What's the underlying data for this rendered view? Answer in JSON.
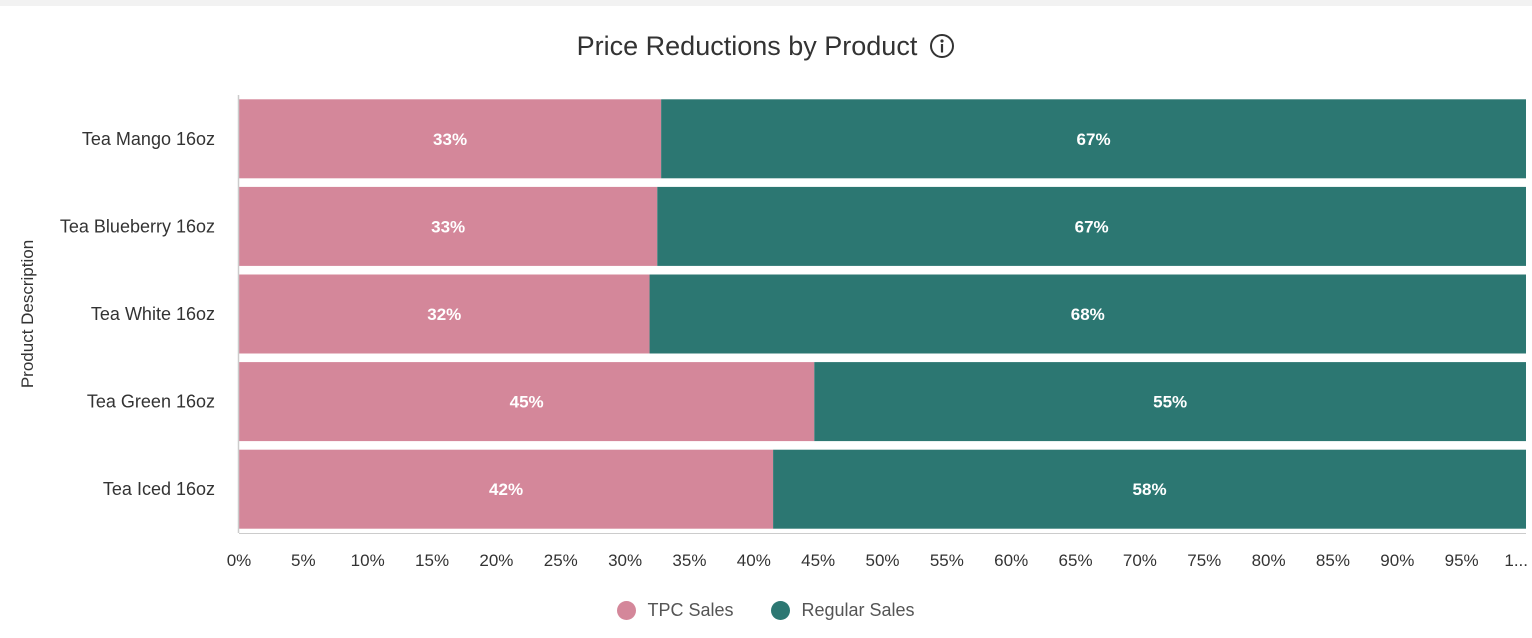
{
  "chart": {
    "title": "Price Reductions by Product",
    "info_icon": "info-circle-icon"
  },
  "chart_data": {
    "type": "bar",
    "orientation": "horizontal",
    "stacked": "percent",
    "title": "Price Reductions by Product",
    "ylabel": "Product Description",
    "xlabel": "",
    "categories": [
      "Tea Mango 16oz",
      "Tea Blueberry 16oz",
      "Tea White 16oz",
      "Tea Green 16oz",
      "Tea Iced 16oz"
    ],
    "series": [
      {
        "name": "TPC Sales",
        "color": "#d4879a",
        "values": [
          32.8,
          32.5,
          31.9,
          44.7,
          41.5
        ],
        "labels": [
          "33%",
          "33%",
          "32%",
          "45%",
          "42%"
        ]
      },
      {
        "name": "Regular Sales",
        "color": "#2c7772",
        "values": [
          67.2,
          67.5,
          68.1,
          55.3,
          58.5
        ],
        "labels": [
          "67%",
          "67%",
          "68%",
          "55%",
          "58%"
        ]
      }
    ],
    "xlim": [
      0,
      100
    ],
    "xticks": [
      "0%",
      "5%",
      "10%",
      "15%",
      "20%",
      "25%",
      "30%",
      "35%",
      "40%",
      "45%",
      "50%",
      "55%",
      "60%",
      "65%",
      "70%",
      "75%",
      "80%",
      "85%",
      "90%",
      "95%",
      "1..."
    ],
    "grid": false,
    "legend_position": "bottom-center"
  }
}
